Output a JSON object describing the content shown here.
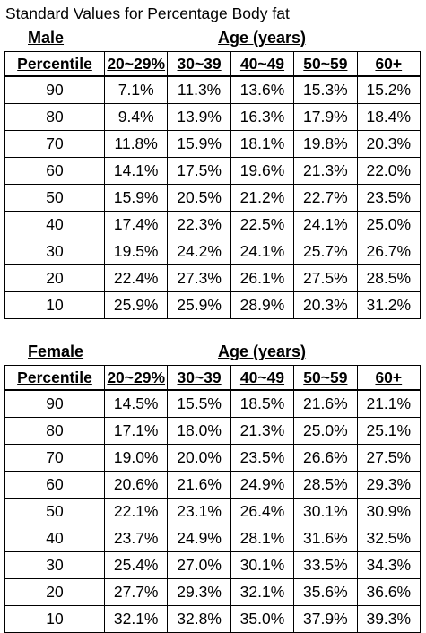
{
  "title": "Standard Values for Percentage Body fat",
  "columns": [
    "Percentile",
    "20~29%",
    "30~39",
    "40~49",
    "50~59",
    "60+"
  ],
  "age_label": "Age (years)",
  "male": {
    "label": "Male",
    "rows": [
      [
        "90",
        "7.1%",
        "11.3%",
        "13.6%",
        "15.3%",
        "15.2%"
      ],
      [
        "80",
        "9.4%",
        "13.9%",
        "16.3%",
        "17.9%",
        "18.4%"
      ],
      [
        "70",
        "11.8%",
        "15.9%",
        "18.1%",
        "19.8%",
        "20.3%"
      ],
      [
        "60",
        "14.1%",
        "17.5%",
        "19.6%",
        "21.3%",
        "22.0%"
      ],
      [
        "50",
        "15.9%",
        "20.5%",
        "21.2%",
        "22.7%",
        "23.5%"
      ],
      [
        "40",
        "17.4%",
        "22.3%",
        "22.5%",
        "24.1%",
        "25.0%"
      ],
      [
        "30",
        "19.5%",
        "24.2%",
        "24.1%",
        "25.7%",
        "26.7%"
      ],
      [
        "20",
        "22.4%",
        "27.3%",
        "26.1%",
        "27.5%",
        "28.5%"
      ],
      [
        "10",
        "25.9%",
        "25.9%",
        "28.9%",
        "20.3%",
        "31.2%"
      ]
    ]
  },
  "female": {
    "label": "Female",
    "rows": [
      [
        "90",
        "14.5%",
        "15.5%",
        "18.5%",
        "21.6%",
        "21.1%"
      ],
      [
        "80",
        "17.1%",
        "18.0%",
        "21.3%",
        "25.0%",
        "25.1%"
      ],
      [
        "70",
        "19.0%",
        "20.0%",
        "23.5%",
        "26.6%",
        "27.5%"
      ],
      [
        "60",
        "20.6%",
        "21.6%",
        "24.9%",
        "28.5%",
        "29.3%"
      ],
      [
        "50",
        "22.1%",
        "23.1%",
        "26.4%",
        "30.1%",
        "30.9%"
      ],
      [
        "40",
        "23.7%",
        "24.9%",
        "28.1%",
        "31.6%",
        "32.5%"
      ],
      [
        "30",
        "25.4%",
        "27.0%",
        "30.1%",
        "33.5%",
        "34.3%"
      ],
      [
        "20",
        "27.7%",
        "29.3%",
        "32.1%",
        "35.6%",
        "36.6%"
      ],
      [
        "10",
        "32.1%",
        "32.8%",
        "35.0%",
        "37.9%",
        "39.3%"
      ]
    ]
  }
}
